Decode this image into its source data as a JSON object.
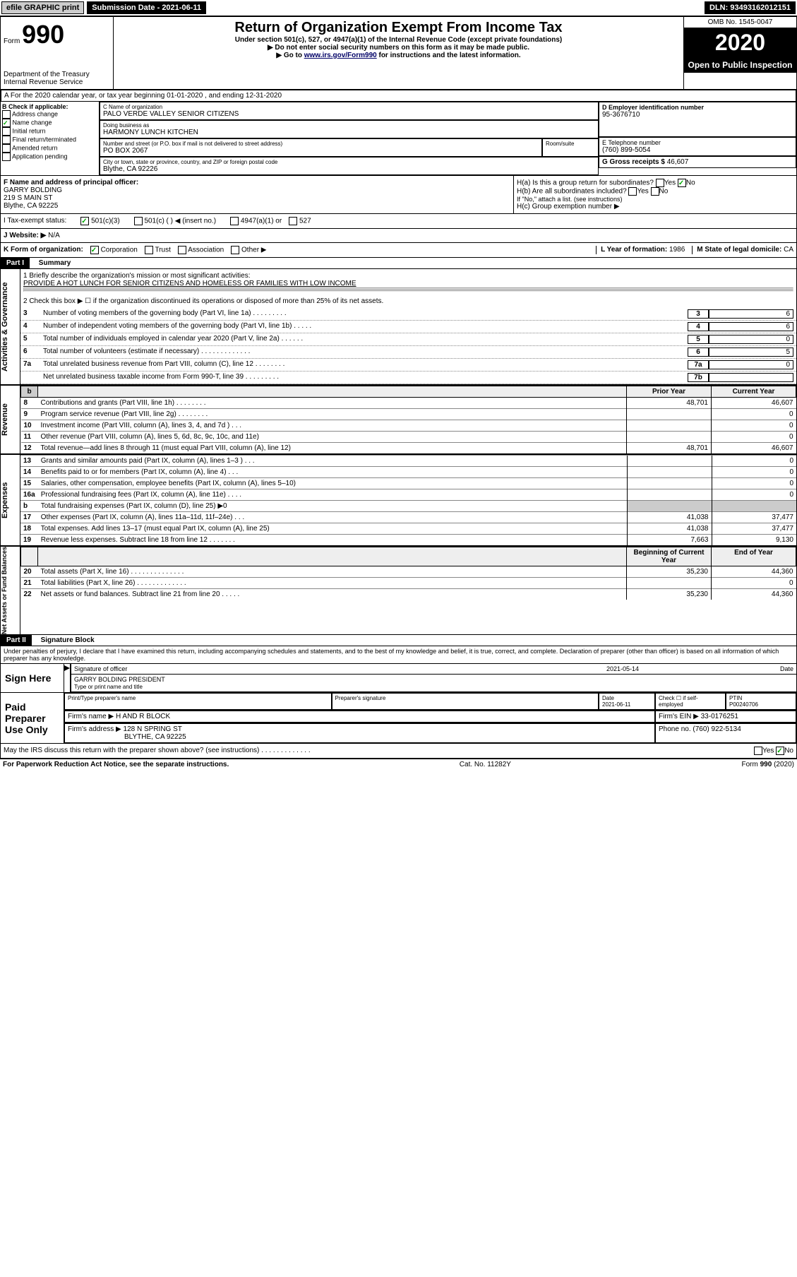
{
  "topbar": {
    "efile": "efile GRAPHIC print",
    "submission_label": "Submission Date - 2021-06-11",
    "dln": "DLN: 93493162012151"
  },
  "header": {
    "form_prefix": "Form",
    "form_number": "990",
    "title": "Return of Organization Exempt From Income Tax",
    "subtitle": "Under section 501(c), 527, or 4947(a)(1) of the Internal Revenue Code (except private foundations)",
    "note1": "▶ Do not enter social security numbers on this form as it may be made public.",
    "note2_prefix": "▶ Go to ",
    "note2_link": "www.irs.gov/Form990",
    "note2_suffix": " for instructions and the latest information.",
    "dept": "Department of the Treasury\nInternal Revenue Service",
    "omb": "OMB No. 1545-0047",
    "year": "2020",
    "inspection": "Open to Public Inspection"
  },
  "period": {
    "text": "A For the 2020 calendar year, or tax year beginning 01-01-2020    , and ending 12-31-2020"
  },
  "checkboxes": {
    "label": "B Check if applicable:",
    "items": [
      "Address change",
      "Name change",
      "Initial return",
      "Final return/terminated",
      "Amended return",
      "Application pending"
    ],
    "checked_index": 1
  },
  "entity": {
    "name_label": "C Name of organization",
    "name": "PALO VERDE VALLEY SENIOR CITIZENS",
    "dba_label": "Doing business as",
    "dba": "HARMONY LUNCH KITCHEN",
    "addr_label": "Number and street (or P.O. box if mail is not delivered to street address)",
    "room_label": "Room/suite",
    "addr": "PO BOX 2067",
    "city_label": "City or town, state or province, country, and ZIP or foreign postal code",
    "city": "Blythe, CA  92226",
    "ein_label": "D Employer identification number",
    "ein": "95-3676710",
    "tel_label": "E Telephone number",
    "tel": "(760) 899-5054",
    "gross_label": "G Gross receipts $",
    "gross": "46,607"
  },
  "officer": {
    "label": "F  Name and address of principal officer:",
    "name": "GARRY BOLDING",
    "addr": "219 S MAIN ST",
    "city": "Blythe, CA  92225"
  },
  "h_block": {
    "ha": "H(a)  Is this a group return for subordinates?",
    "hb": "H(b)  Are all subordinates included?",
    "hb_note": "If \"No,\" attach a list. (see instructions)",
    "hc": "H(c)  Group exemption number ▶",
    "yes": "Yes",
    "no": "No"
  },
  "status": {
    "label_i": "I  Tax-exempt status:",
    "opt1": "501(c)(3)",
    "opt2": "501(c) (  ) ◀ (insert no.)",
    "opt3": "4947(a)(1) or",
    "opt4": "527",
    "label_j": "J  Website: ▶",
    "website": "N/A"
  },
  "k_block": {
    "label": "K Form of organization:",
    "opts": [
      "Corporation",
      "Trust",
      "Association",
      "Other ▶"
    ],
    "l_label": "L Year of formation:",
    "l_val": "1986",
    "m_label": "M State of legal domicile:",
    "m_val": "CA"
  },
  "part1": {
    "header": "Part I",
    "title": "Summary",
    "line1_label": "1  Briefly describe the organization's mission or most significant activities:",
    "line1_val": "PROVIDE A HOT LUNCH FOR SENIOR CITIZENS AND HOMELESS OR FAMILIES WITH LOW INCOME",
    "line2": "2     Check this box ▶ ☐  if the organization discontinued its operations or disposed of more than 25% of its net assets.",
    "govern_lines": [
      {
        "n": "3",
        "t": "Number of voting members of the governing body (Part VI, line 1a)   .    .    .    .    .    .    .    .    .",
        "box": "3",
        "v": "6"
      },
      {
        "n": "4",
        "t": "Number of independent voting members of the governing body (Part VI, line 1b)   .    .    .    .    .",
        "box": "4",
        "v": "6"
      },
      {
        "n": "5",
        "t": "Total number of individuals employed in calendar year 2020 (Part V, line 2a)   .    .    .    .    .    .",
        "box": "5",
        "v": "0"
      },
      {
        "n": "6",
        "t": "Total number of volunteers (estimate if necessary)   .    .    .    .    .    .    .    .    .    .    .    .    .",
        "box": "6",
        "v": "5"
      },
      {
        "n": "7a",
        "t": "Total unrelated business revenue from Part VIII, column (C), line 12   .    .    .    .    .    .    .    .",
        "box": "7a",
        "v": "0"
      },
      {
        "n": "",
        "t": "Net unrelated business taxable income from Form 990-T, line 39   .    .    .    .    .    .    .    .    .",
        "box": "7b",
        "v": ""
      }
    ],
    "col_prior": "Prior Year",
    "col_curr": "Current Year",
    "revenue": [
      {
        "n": "8",
        "t": "Contributions and grants (Part VIII, line 1h)   .    .    .    .    .    .    .    .",
        "p": "48,701",
        "c": "46,607"
      },
      {
        "n": "9",
        "t": "Program service revenue (Part VIII, line 2g)   .    .    .    .    .    .    .    .",
        "p": "",
        "c": "0"
      },
      {
        "n": "10",
        "t": "Investment income (Part VIII, column (A), lines 3, 4, and 7d )   .    .    .",
        "p": "",
        "c": "0"
      },
      {
        "n": "11",
        "t": "Other revenue (Part VIII, column (A), lines 5, 6d, 8c, 9c, 10c, and 11e)",
        "p": "",
        "c": "0"
      },
      {
        "n": "12",
        "t": "Total revenue—add lines 8 through 11 (must equal Part VIII, column (A), line 12)",
        "p": "48,701",
        "c": "46,607"
      }
    ],
    "expenses": [
      {
        "n": "13",
        "t": "Grants and similar amounts paid (Part IX, column (A), lines 1–3 )   .    .    .",
        "p": "",
        "c": "0"
      },
      {
        "n": "14",
        "t": "Benefits paid to or for members (Part IX, column (A), line 4)   .    .    .",
        "p": "",
        "c": "0"
      },
      {
        "n": "15",
        "t": "Salaries, other compensation, employee benefits (Part IX, column (A), lines 5–10)",
        "p": "",
        "c": "0"
      },
      {
        "n": "16a",
        "t": "Professional fundraising fees (Part IX, column (A), line 11e)   .    .    .    .",
        "p": "",
        "c": "0"
      },
      {
        "n": "b",
        "t": "Total fundraising expenses (Part IX, column (D), line 25) ▶0",
        "p": "GRAY",
        "c": "GRAY"
      },
      {
        "n": "17",
        "t": "Other expenses (Part IX, column (A), lines 11a–11d, 11f–24e)   .    .    .",
        "p": "41,038",
        "c": "37,477"
      },
      {
        "n": "18",
        "t": "Total expenses. Add lines 13–17 (must equal Part IX, column (A), line 25)",
        "p": "41,038",
        "c": "37,477"
      },
      {
        "n": "19",
        "t": "Revenue less expenses. Subtract line 18 from line 12   .    .    .    .    .    .    .",
        "p": "7,663",
        "c": "9,130"
      }
    ],
    "col_begin": "Beginning of Current Year",
    "col_end": "End of Year",
    "netassets": [
      {
        "n": "20",
        "t": "Total assets (Part X, line 16)   .    .    .    .    .    .    .    .    .    .    .    .    .    .",
        "p": "35,230",
        "c": "44,360"
      },
      {
        "n": "21",
        "t": "Total liabilities (Part X, line 26)   .    .    .    .    .    .    .    .    .    .    .    .    .",
        "p": "",
        "c": "0"
      },
      {
        "n": "22",
        "t": "Net assets or fund balances. Subtract line 21 from line 20   .    .    .    .    .",
        "p": "35,230",
        "c": "44,360"
      }
    ],
    "side_labels": {
      "gov": "Activities & Governance",
      "rev": "Revenue",
      "exp": "Expenses",
      "net": "Net Assets or\nFund Balances"
    }
  },
  "part2": {
    "header": "Part II",
    "title": "Signature Block",
    "jurat": "Under penalties of perjury, I declare that I have examined this return, including accompanying schedules and statements, and to the best of my knowledge and belief, it is true, correct, and complete. Declaration of preparer (other than officer) is based on all information of which preparer has any knowledge.",
    "sign_here": "Sign Here",
    "sig_officer": "Signature of officer",
    "sig_date": "2021-05-14",
    "date_label": "Date",
    "officer_name": "GARRY BOLDING  PRESIDENT",
    "type_label": "Type or print name and title",
    "paid": "Paid Preparer Use Only",
    "prep_name_label": "Print/Type preparer's name",
    "prep_sig_label": "Preparer's signature",
    "prep_date_label": "Date",
    "prep_date": "2021-06-11",
    "check_label": "Check ☐  if self-employed",
    "ptin_label": "PTIN",
    "ptin": "P00240706",
    "firm_name_label": "Firm's name    ▶",
    "firm_name": "H AND R BLOCK",
    "firm_ein_label": "Firm's EIN ▶",
    "firm_ein": "33-0176251",
    "firm_addr_label": "Firm's address ▶",
    "firm_addr": "128 N SPRING ST",
    "firm_city": "BLYTHE, CA  92225",
    "phone_label": "Phone no.",
    "phone": "(760) 922-5134",
    "discuss": "May the IRS discuss this return with the preparer shown above? (see instructions)   .    .    .    .    .    .    .    .    .    .    .    .    .",
    "yes": "Yes",
    "no": "No"
  },
  "footer": {
    "paperwork": "For Paperwork Reduction Act Notice, see the separate instructions.",
    "cat": "Cat. No. 11282Y",
    "form": "Form 990 (2020)"
  }
}
